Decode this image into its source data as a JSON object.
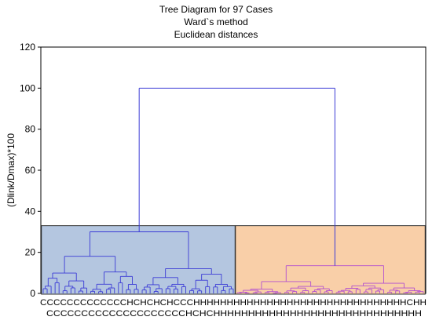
{
  "chart_data": {
    "type": "dendrogram",
    "title": "Tree Diagram for 97 Cases",
    "subtitle1": "Ward`s method",
    "subtitle2": "Euclidean distances",
    "ylabel": "(Dlink/Dmax)*100",
    "ylim": [
      0,
      120
    ],
    "yticks": [
      0,
      20,
      40,
      60,
      80,
      100,
      120
    ],
    "grid": false,
    "root_height": 100,
    "clusters": [
      {
        "name": "C",
        "case_count": 49,
        "cut_height": 30,
        "color": "#b4c6e0",
        "line_color": "#3b3bd6"
      },
      {
        "name": "H",
        "case_count": 48,
        "cut_height": 13.5,
        "color": "#f9cfa8",
        "line_color": "#b24fd0"
      }
    ],
    "case_labels_row1": "CCCCCCCCCCCCCHCHCHCHCCCHHHHHHHHHHHHHHHHHHHHHHHHHHHHHHHHCHH",
    "case_labels_row2": "CCCCCCCCCCCCCCCCCCCCHCHCHHHHHHHHHHHHHHHHHHHHHHHHHHHHHH"
  }
}
